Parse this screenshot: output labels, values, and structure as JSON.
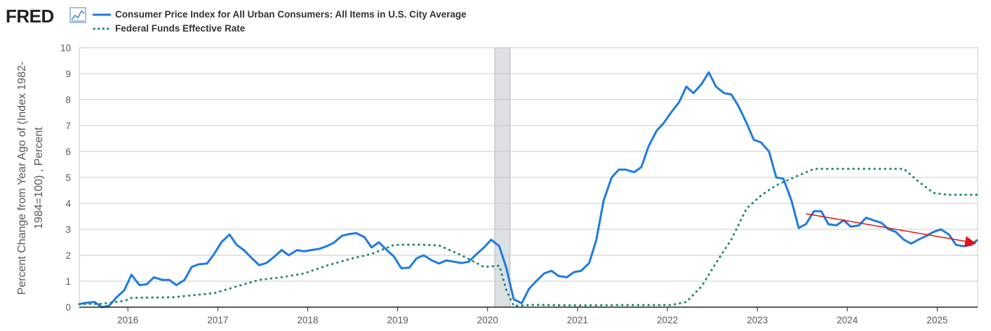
{
  "logo": {
    "text": "FRED",
    "icon": "line-chart-icon"
  },
  "chart_data": {
    "type": "line",
    "x_unit": "decimal-year",
    "xlim": [
      2015.46,
      2025.45
    ],
    "ylim": [
      0,
      10
    ],
    "yticks": [
      0,
      1,
      2,
      3,
      4,
      5,
      6,
      7,
      8,
      9,
      10
    ],
    "xticks": [
      {
        "value": 2016.0,
        "label": "2016"
      },
      {
        "value": 2017.0,
        "label": "2017"
      },
      {
        "value": 2018.0,
        "label": "2018"
      },
      {
        "value": 2019.0,
        "label": "2019"
      },
      {
        "value": 2020.0,
        "label": "2020"
      },
      {
        "value": 2021.0,
        "label": "2021"
      },
      {
        "value": 2022.0,
        "label": "2022"
      },
      {
        "value": 2023.0,
        "label": "2023"
      },
      {
        "value": 2024.0,
        "label": "2024"
      },
      {
        "value": 2025.0,
        "label": "2025"
      }
    ],
    "ylabel": "Percent Change from Year Ago of (Index 1982-1984=100) , Percent",
    "ylabel_lines": [
      "Percent Change from Year Ago of (Index 1982-",
      "1984=100) , Percent"
    ],
    "xlabel": "",
    "grid": "horizontal",
    "legend_position": "top-left",
    "recession_shade": {
      "start": 2020.08,
      "end": 2020.25
    },
    "series": [
      {
        "name": "Consumer Price Index for All Urban Consumers: All Items in U.S. City Average",
        "style": "solid",
        "color": "#1e7be0",
        "points": [
          [
            2015.46,
            0.12
          ],
          [
            2015.54,
            0.17
          ],
          [
            2015.63,
            0.2
          ],
          [
            2015.71,
            0.0
          ],
          [
            2015.79,
            0.05
          ],
          [
            2015.88,
            0.4
          ],
          [
            2015.96,
            0.65
          ],
          [
            2016.04,
            1.25
          ],
          [
            2016.13,
            0.85
          ],
          [
            2016.21,
            0.88
          ],
          [
            2016.29,
            1.15
          ],
          [
            2016.38,
            1.05
          ],
          [
            2016.46,
            1.05
          ],
          [
            2016.54,
            0.85
          ],
          [
            2016.63,
            1.05
          ],
          [
            2016.71,
            1.55
          ],
          [
            2016.79,
            1.65
          ],
          [
            2016.88,
            1.68
          ],
          [
            2016.96,
            2.05
          ],
          [
            2017.04,
            2.5
          ],
          [
            2017.13,
            2.8
          ],
          [
            2017.21,
            2.4
          ],
          [
            2017.29,
            2.2
          ],
          [
            2017.38,
            1.88
          ],
          [
            2017.46,
            1.62
          ],
          [
            2017.54,
            1.7
          ],
          [
            2017.63,
            1.95
          ],
          [
            2017.71,
            2.2
          ],
          [
            2017.79,
            2.0
          ],
          [
            2017.88,
            2.2
          ],
          [
            2017.96,
            2.15
          ],
          [
            2018.04,
            2.2
          ],
          [
            2018.13,
            2.25
          ],
          [
            2018.21,
            2.35
          ],
          [
            2018.29,
            2.48
          ],
          [
            2018.38,
            2.75
          ],
          [
            2018.46,
            2.82
          ],
          [
            2018.54,
            2.85
          ],
          [
            2018.63,
            2.7
          ],
          [
            2018.71,
            2.3
          ],
          [
            2018.79,
            2.5
          ],
          [
            2018.88,
            2.2
          ],
          [
            2018.96,
            1.95
          ],
          [
            2019.04,
            1.5
          ],
          [
            2019.13,
            1.52
          ],
          [
            2019.21,
            1.88
          ],
          [
            2019.29,
            2.0
          ],
          [
            2019.38,
            1.8
          ],
          [
            2019.46,
            1.68
          ],
          [
            2019.54,
            1.8
          ],
          [
            2019.63,
            1.75
          ],
          [
            2019.71,
            1.7
          ],
          [
            2019.79,
            1.75
          ],
          [
            2019.88,
            2.05
          ],
          [
            2019.96,
            2.3
          ],
          [
            2020.04,
            2.6
          ],
          [
            2020.13,
            2.35
          ],
          [
            2020.21,
            1.5
          ],
          [
            2020.29,
            0.3
          ],
          [
            2020.38,
            0.15
          ],
          [
            2020.46,
            0.7
          ],
          [
            2020.54,
            1.0
          ],
          [
            2020.63,
            1.3
          ],
          [
            2020.71,
            1.4
          ],
          [
            2020.79,
            1.2
          ],
          [
            2020.88,
            1.15
          ],
          [
            2020.96,
            1.35
          ],
          [
            2021.04,
            1.4
          ],
          [
            2021.13,
            1.7
          ],
          [
            2021.21,
            2.6
          ],
          [
            2021.29,
            4.1
          ],
          [
            2021.38,
            5.0
          ],
          [
            2021.46,
            5.3
          ],
          [
            2021.54,
            5.3
          ],
          [
            2021.63,
            5.2
          ],
          [
            2021.71,
            5.4
          ],
          [
            2021.79,
            6.2
          ],
          [
            2021.88,
            6.8
          ],
          [
            2021.96,
            7.1
          ],
          [
            2022.04,
            7.5
          ],
          [
            2022.13,
            7.9
          ],
          [
            2022.21,
            8.5
          ],
          [
            2022.29,
            8.25
          ],
          [
            2022.38,
            8.6
          ],
          [
            2022.46,
            9.05
          ],
          [
            2022.54,
            8.5
          ],
          [
            2022.63,
            8.25
          ],
          [
            2022.71,
            8.2
          ],
          [
            2022.79,
            7.75
          ],
          [
            2022.88,
            7.1
          ],
          [
            2022.96,
            6.45
          ],
          [
            2023.04,
            6.35
          ],
          [
            2023.13,
            6.0
          ],
          [
            2023.21,
            5.0
          ],
          [
            2023.29,
            4.95
          ],
          [
            2023.38,
            4.1
          ],
          [
            2023.46,
            3.05
          ],
          [
            2023.54,
            3.2
          ],
          [
            2023.63,
            3.7
          ],
          [
            2023.71,
            3.7
          ],
          [
            2023.79,
            3.2
          ],
          [
            2023.88,
            3.15
          ],
          [
            2023.96,
            3.35
          ],
          [
            2024.04,
            3.1
          ],
          [
            2024.13,
            3.15
          ],
          [
            2024.21,
            3.45
          ],
          [
            2024.29,
            3.35
          ],
          [
            2024.38,
            3.25
          ],
          [
            2024.46,
            3.0
          ],
          [
            2024.54,
            2.9
          ],
          [
            2024.63,
            2.6
          ],
          [
            2024.71,
            2.45
          ],
          [
            2024.79,
            2.6
          ],
          [
            2024.88,
            2.75
          ],
          [
            2024.96,
            2.9
          ],
          [
            2025.04,
            3.0
          ],
          [
            2025.13,
            2.8
          ],
          [
            2025.21,
            2.4
          ],
          [
            2025.29,
            2.35
          ],
          [
            2025.38,
            2.4
          ],
          [
            2025.45,
            2.6
          ]
        ]
      },
      {
        "name": "Federal Funds Effective Rate",
        "style": "dotted",
        "color": "#1a8a6f",
        "points": [
          [
            2015.46,
            0.12
          ],
          [
            2015.71,
            0.13
          ],
          [
            2015.96,
            0.24
          ],
          [
            2016.04,
            0.36
          ],
          [
            2016.5,
            0.38
          ],
          [
            2016.96,
            0.54
          ],
          [
            2017.21,
            0.8
          ],
          [
            2017.46,
            1.05
          ],
          [
            2017.71,
            1.15
          ],
          [
            2017.96,
            1.3
          ],
          [
            2018.21,
            1.6
          ],
          [
            2018.46,
            1.85
          ],
          [
            2018.71,
            2.05
          ],
          [
            2018.96,
            2.4
          ],
          [
            2019.21,
            2.41
          ],
          [
            2019.46,
            2.38
          ],
          [
            2019.71,
            2.0
          ],
          [
            2019.96,
            1.55
          ],
          [
            2020.13,
            1.6
          ],
          [
            2020.21,
            0.65
          ],
          [
            2020.29,
            0.05
          ],
          [
            2020.5,
            0.09
          ],
          [
            2021.0,
            0.07
          ],
          [
            2021.5,
            0.08
          ],
          [
            2022.04,
            0.08
          ],
          [
            2022.21,
            0.2
          ],
          [
            2022.38,
            0.8
          ],
          [
            2022.54,
            1.7
          ],
          [
            2022.71,
            2.6
          ],
          [
            2022.88,
            3.8
          ],
          [
            2023.04,
            4.3
          ],
          [
            2023.21,
            4.7
          ],
          [
            2023.46,
            5.08
          ],
          [
            2023.63,
            5.33
          ],
          [
            2024.0,
            5.33
          ],
          [
            2024.63,
            5.33
          ],
          [
            2024.79,
            4.85
          ],
          [
            2024.96,
            4.4
          ],
          [
            2025.13,
            4.33
          ],
          [
            2025.45,
            4.33
          ]
        ]
      }
    ],
    "annotations": [
      {
        "type": "arrow",
        "color": "#e01414",
        "from": [
          2023.54,
          3.6
        ],
        "to": [
          2025.45,
          2.45
        ]
      }
    ]
  }
}
